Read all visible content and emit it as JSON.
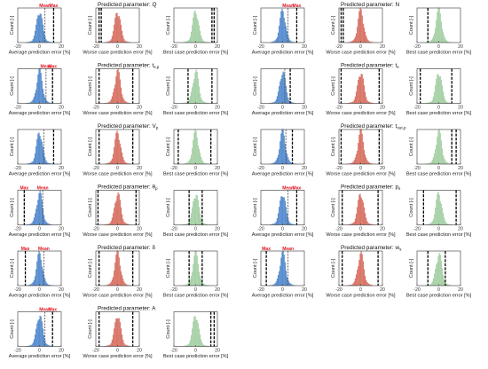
{
  "chart_data": {
    "type": "bar",
    "kind": "histogram-grid",
    "x_range": [
      -20,
      20
    ],
    "x_ticks": [
      "-20",
      "0",
      "20"
    ],
    "ylabel": "Count [-]",
    "marker_labels": {
      "mean": "Mean",
      "max": "Max"
    },
    "columns": [
      {
        "xlabel": "Average prediction error [%]",
        "color": "#5b8fcf"
      },
      {
        "xlabel": "Worse case prediction error [%]",
        "color": "#d9776a"
      },
      {
        "xlabel": "Best case prediction error [%]",
        "color": "#a9d2a9"
      }
    ],
    "title_prefix": "Predicted parameter: ",
    "panels": [
      {
        "symbol": "Q",
        "sub": "",
        "col": 0,
        "row": 0,
        "average": {
          "mean": 5,
          "max": 13,
          "labeled": true
        },
        "worse": {
          "lines": [
            -17,
            -15
          ]
        },
        "best": {
          "lines": [
            15,
            17
          ]
        }
      },
      {
        "symbol": "N",
        "sub": "",
        "col": 1,
        "row": 0,
        "average": {
          "mean": 5,
          "max": 13,
          "labeled": true
        },
        "worse": {
          "lines": [
            -18,
            -16
          ]
        },
        "best": {
          "lines": [
            -10
          ]
        }
      },
      {
        "symbol": "t",
        "sub": "s,p",
        "col": 0,
        "row": 1,
        "average": {
          "mean": 6,
          "max": 12,
          "labeled": true
        },
        "worse": {
          "lines": [
            -17,
            14
          ]
        },
        "best": {
          "lines": [
            -7,
            15
          ]
        }
      },
      {
        "symbol": "t",
        "sub": "s",
        "col": 1,
        "row": 1,
        "average": {
          "mean": 2,
          "max": 7,
          "labeled": false
        },
        "worse": {
          "lines": [
            -18,
            17
          ]
        },
        "best": {
          "lines": [
            -17,
            12
          ]
        }
      },
      {
        "symbol": "V",
        "sub": "p",
        "col": 0,
        "row": 2,
        "average": {
          "mean": 4,
          "max": 13,
          "labeled": false
        },
        "worse": {
          "lines": [
            -17,
            14
          ]
        },
        "best": {
          "lines": [
            -16,
            14
          ]
        }
      },
      {
        "symbol": "t",
        "sub": "out,p",
        "col": 1,
        "row": 2,
        "average": {
          "mean": 3,
          "max": 9,
          "labeled": false
        },
        "worse": {
          "lines": [
            -18,
            17
          ]
        },
        "best": {
          "lines": [
            12,
            16
          ]
        }
      },
      {
        "symbol": "θ",
        "sub": "p",
        "col": 0,
        "row": 3,
        "average": {
          "mean": 3,
          "max": -14,
          "labeled": true
        },
        "worse": {
          "lines": [
            -18,
            17
          ]
        },
        "best": {
          "lines": [
            -6,
            6
          ]
        }
      },
      {
        "symbol": "p",
        "sub": "s",
        "col": 1,
        "row": 3,
        "average": {
          "mean": 5,
          "max": 13,
          "labeled": true
        },
        "worse": {
          "lines": [
            -17,
            16
          ]
        },
        "best": {
          "lines": [
            -14,
            16
          ]
        }
      },
      {
        "symbol": "δ",
        "sub": "",
        "col": 0,
        "row": 4,
        "average": {
          "mean": 4,
          "max": -13,
          "labeled": true
        },
        "worse": {
          "lines": [
            -17,
            14
          ]
        },
        "best": {
          "lines": [
            -6,
            6
          ]
        }
      },
      {
        "symbol": "w",
        "sub": "s",
        "col": 1,
        "row": 4,
        "average": {
          "mean": 5,
          "max": -15,
          "labeled": true
        },
        "worse": {
          "lines": [
            -17,
            16
          ]
        },
        "best": {
          "lines": [
            -10,
            6
          ]
        }
      },
      {
        "symbol": "A",
        "sub": "",
        "col": 0,
        "row": 5,
        "average": {
          "mean": 5,
          "max": 12,
          "labeled": true
        },
        "worse": {
          "lines": [
            -17,
            14
          ]
        },
        "best": {
          "lines": [
            14,
            17
          ]
        }
      }
    ]
  }
}
